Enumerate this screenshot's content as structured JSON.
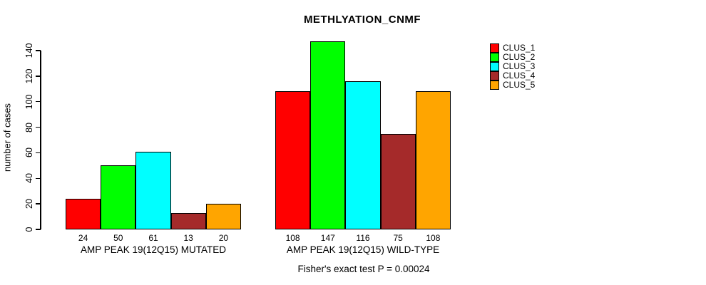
{
  "chart_data": {
    "type": "bar",
    "title": "METHLYATION_CNMF",
    "ylabel": "number of cases",
    "xlabel": "",
    "ylim": [
      0,
      140
    ],
    "yticks": [
      0,
      20,
      40,
      60,
      80,
      100,
      120,
      140
    ],
    "grid": false,
    "categories": [
      "AMP PEAK 19(12Q15) MUTATED",
      "AMP PEAK 19(12Q15) WILD-TYPE"
    ],
    "series": [
      {
        "name": "CLUS_1",
        "color": "#FF0000",
        "values": [
          24,
          108
        ]
      },
      {
        "name": "CLUS_2",
        "color": "#00FF00",
        "values": [
          50,
          147
        ]
      },
      {
        "name": "CLUS_3",
        "color": "#00FFFF",
        "values": [
          61,
          116
        ]
      },
      {
        "name": "CLUS_4",
        "color": "#A52A2A",
        "values": [
          13,
          75
        ]
      },
      {
        "name": "CLUS_5",
        "color": "#FFA500",
        "values": [
          20,
          108
        ]
      }
    ],
    "bar_value_labels": [
      [
        24,
        50,
        61,
        13,
        20
      ],
      [
        108,
        147,
        116,
        75,
        108
      ]
    ],
    "legend": {
      "position": "right",
      "entries": [
        "CLUS_1",
        "CLUS_2",
        "CLUS_3",
        "CLUS_4",
        "CLUS_5"
      ]
    },
    "footnote": "Fisher's exact test P = 0.00024",
    "colors": {
      "background": "#FFFFFF",
      "axis": "#000000",
      "bar_border": "#000000",
      "text": "#000000"
    }
  }
}
